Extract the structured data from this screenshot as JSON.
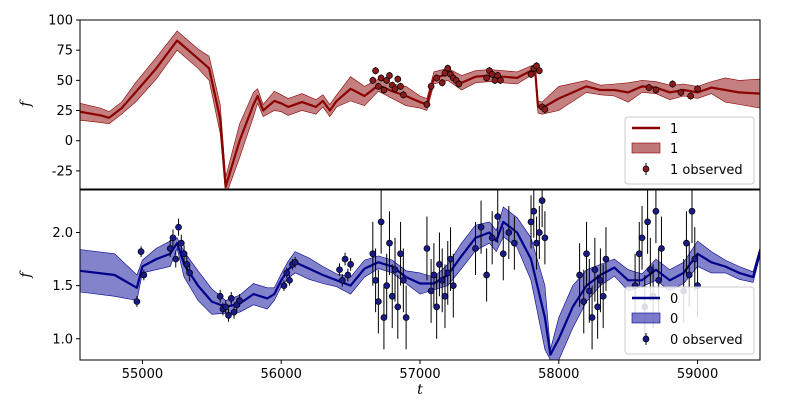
{
  "chart_data": [
    {
      "type": "line",
      "panel": "top",
      "ylabel": "f",
      "ylim": [
        -40,
        100
      ],
      "xlim": [
        54550,
        59450
      ],
      "yticks": [
        -25,
        0,
        25,
        50,
        75,
        100
      ],
      "color": "#8b0000",
      "band_color": "#b05555",
      "marker_color": "#8b1a1a",
      "legend": {
        "line": "1",
        "band": "1",
        "points": "1 observed",
        "position": "lower right"
      },
      "model": {
        "x": [
          54550,
          54700,
          54760,
          54850,
          54950,
          55100,
          55250,
          55400,
          55480,
          55560,
          55600,
          55700,
          55800,
          55830,
          55870,
          55950,
          56000,
          56050,
          56150,
          56250,
          56300,
          56350,
          56400,
          56500,
          56600,
          56700,
          56800,
          56900,
          57000,
          57050,
          57100,
          57200,
          57300,
          57400,
          57500,
          57600,
          57700,
          57800,
          57830,
          57850,
          57880,
          58000,
          58200,
          58300,
          58400,
          58500,
          58600,
          58700,
          58800,
          58900,
          59000,
          59100,
          59200,
          59300,
          59450
        ],
        "y": [
          24,
          21,
          19,
          27,
          40,
          60,
          83,
          68,
          60,
          18,
          -38,
          0,
          30,
          37,
          25,
          33,
          31,
          28,
          32,
          28,
          33,
          25,
          33,
          43,
          37,
          46,
          41,
          37,
          32,
          30,
          52,
          55,
          48,
          53,
          54,
          53,
          52,
          58,
          58,
          28,
          27,
          35,
          45,
          42,
          42,
          40,
          45,
          44,
          40,
          42,
          40,
          44,
          42,
          40,
          39
        ],
        "band": [
          7,
          6,
          5,
          5,
          8,
          9,
          8,
          8,
          10,
          12,
          8,
          14,
          10,
          6,
          5,
          8,
          7,
          7,
          7,
          6,
          5,
          5,
          5,
          10,
          8,
          5,
          6,
          8,
          5,
          5,
          5,
          5,
          6,
          5,
          5,
          5,
          5,
          4,
          4,
          5,
          5,
          10,
          5,
          4,
          5,
          8,
          5,
          5,
          6,
          5,
          5,
          5,
          10,
          10,
          12
        ]
      },
      "observed": {
        "x": [
          56660,
          56680,
          56700,
          56720,
          56740,
          56760,
          56780,
          56800,
          56820,
          56840,
          56860,
          56880,
          57050,
          57080,
          57120,
          57160,
          57180,
          57200,
          57220,
          57240,
          57260,
          57280,
          57480,
          57500,
          57520,
          57540,
          57560,
          57580,
          57800,
          57820,
          57840,
          57860,
          57880,
          57900,
          58650,
          58700,
          58820,
          58880,
          58950,
          59000
        ],
        "y": [
          50,
          58,
          45,
          52,
          42,
          50,
          54,
          46,
          43,
          51,
          45,
          38,
          30,
          45,
          52,
          48,
          56,
          60,
          55,
          52,
          50,
          47,
          52,
          58,
          55,
          50,
          54,
          50,
          55,
          60,
          62,
          58,
          28,
          26,
          44,
          42,
          47,
          40,
          37,
          43
        ],
        "err": [
          3,
          3,
          3,
          3,
          3,
          3,
          3,
          3,
          3,
          3,
          3,
          3,
          3,
          3,
          3,
          3,
          3,
          3,
          3,
          3,
          3,
          3,
          3,
          3,
          3,
          3,
          3,
          3,
          3,
          3,
          3,
          3,
          3,
          3,
          3,
          3,
          3,
          3,
          3,
          3
        ]
      }
    },
    {
      "type": "line",
      "panel": "bottom",
      "xlabel": "t",
      "ylabel": "f",
      "ylim": [
        0.8,
        2.4
      ],
      "xlim": [
        54550,
        59450
      ],
      "yticks": [
        1.0,
        1.5,
        2.0
      ],
      "xticks": [
        55000,
        56000,
        57000,
        58000,
        59000
      ],
      "color": "#00008b",
      "band_color": "#5a5abb",
      "marker_color": "#1a1a8b",
      "legend": {
        "line": "0",
        "band": "0",
        "points": "0 observed",
        "position": "lower right"
      },
      "model": {
        "x": [
          54550,
          54800,
          54960,
          55000,
          55100,
          55200,
          55250,
          55300,
          55400,
          55500,
          55600,
          55700,
          55800,
          55900,
          55950,
          56000,
          56050,
          56100,
          56200,
          56300,
          56400,
          56500,
          56600,
          56700,
          56800,
          56900,
          57000,
          57100,
          57200,
          57300,
          57400,
          57500,
          57550,
          57600,
          57700,
          57800,
          57900,
          57940,
          58000,
          58100,
          58200,
          58300,
          58400,
          58500,
          58600,
          58700,
          58800,
          58900,
          59000,
          59100,
          59200,
          59300,
          59400,
          59450
        ],
        "y": [
          1.64,
          1.6,
          1.48,
          1.68,
          1.75,
          1.8,
          1.9,
          1.7,
          1.5,
          1.35,
          1.3,
          1.33,
          1.42,
          1.38,
          1.42,
          1.55,
          1.65,
          1.72,
          1.66,
          1.6,
          1.55,
          1.5,
          1.66,
          1.72,
          1.68,
          1.58,
          1.52,
          1.52,
          1.6,
          1.78,
          1.95,
          2.0,
          1.92,
          2.1,
          2.0,
          1.75,
          1.2,
          0.85,
          1.0,
          1.3,
          1.5,
          1.6,
          1.67,
          1.55,
          1.55,
          1.65,
          1.55,
          1.62,
          1.8,
          1.72,
          1.68,
          1.62,
          1.58,
          1.82
        ],
        "band": [
          0.2,
          0.2,
          0.12,
          0.06,
          0.1,
          0.12,
          0.05,
          0.12,
          0.14,
          0.12,
          0.06,
          0.08,
          0.1,
          0.1,
          0.06,
          0.06,
          0.08,
          0.1,
          0.1,
          0.08,
          0.06,
          0.08,
          0.08,
          0.06,
          0.06,
          0.06,
          0.1,
          0.06,
          0.1,
          0.12,
          0.12,
          0.1,
          0.1,
          0.14,
          0.14,
          0.2,
          0.3,
          0.05,
          0.2,
          0.2,
          0.15,
          0.1,
          0.08,
          0.1,
          0.06,
          0.1,
          0.1,
          0.1,
          0.12,
          0.1,
          0.06,
          0.06,
          0.05,
          0.04
        ]
      },
      "observed": {
        "x": [
          54960,
          54990,
          55010,
          55200,
          55220,
          55240,
          55260,
          55280,
          55300,
          55320,
          55340,
          55560,
          55580,
          55600,
          55620,
          55640,
          55660,
          55680,
          55700,
          56020,
          56040,
          56060,
          56080,
          56100,
          56420,
          56440,
          56460,
          56480,
          56500,
          56660,
          56680,
          56700,
          56720,
          56740,
          56760,
          56780,
          56800,
          56820,
          56840,
          56860,
          56880,
          56900,
          57050,
          57080,
          57100,
          57120,
          57140,
          57160,
          57180,
          57200,
          57220,
          57240,
          57400,
          57440,
          57480,
          57520,
          57560,
          57600,
          57640,
          57680,
          57800,
          57820,
          57840,
          57860,
          57880,
          57900,
          58150,
          58180,
          58200,
          58220,
          58240,
          58260,
          58280,
          58300,
          58320,
          58340,
          58550,
          58580,
          58600,
          58620,
          58640,
          58660,
          58680,
          58700,
          58720,
          58740,
          58900,
          58920,
          58940,
          58960,
          58980,
          59000
        ],
        "y": [
          1.35,
          1.82,
          1.6,
          1.85,
          1.95,
          1.75,
          2.05,
          1.9,
          1.8,
          1.7,
          1.62,
          1.4,
          1.28,
          1.3,
          1.22,
          1.38,
          1.25,
          1.32,
          1.36,
          1.5,
          1.62,
          1.55,
          1.7,
          1.72,
          1.65,
          1.55,
          1.75,
          1.6,
          1.7,
          1.8,
          1.55,
          1.35,
          2.1,
          1.2,
          1.5,
          1.9,
          1.4,
          1.65,
          1.3,
          1.8,
          1.55,
          1.2,
          1.85,
          1.45,
          1.6,
          1.3,
          1.7,
          1.55,
          1.4,
          1.62,
          1.75,
          1.5,
          1.85,
          2.05,
          1.6,
          1.95,
          2.15,
          1.8,
          2.0,
          1.9,
          2.1,
          2.2,
          1.9,
          2.0,
          2.3,
          1.95,
          1.6,
          1.35,
          1.8,
          1.45,
          1.2,
          1.65,
          1.3,
          1.55,
          1.4,
          1.75,
          1.5,
          1.8,
          1.95,
          1.3,
          2.1,
          1.65,
          1.4,
          2.2,
          1.55,
          1.85,
          1.45,
          1.9,
          1.6,
          2.2,
          1.75,
          1.5
        ],
        "err": [
          0.05,
          0.05,
          0.05,
          0.08,
          0.08,
          0.08,
          0.08,
          0.08,
          0.08,
          0.08,
          0.08,
          0.06,
          0.06,
          0.06,
          0.06,
          0.06,
          0.06,
          0.06,
          0.06,
          0.05,
          0.05,
          0.05,
          0.05,
          0.05,
          0.06,
          0.06,
          0.06,
          0.06,
          0.06,
          0.3,
          0.3,
          0.3,
          0.3,
          0.3,
          0.3,
          0.3,
          0.3,
          0.3,
          0.3,
          0.3,
          0.3,
          0.3,
          0.3,
          0.3,
          0.3,
          0.3,
          0.3,
          0.3,
          0.3,
          0.3,
          0.3,
          0.3,
          0.25,
          0.25,
          0.25,
          0.25,
          0.25,
          0.25,
          0.25,
          0.25,
          0.25,
          0.25,
          0.25,
          0.25,
          0.25,
          0.25,
          0.3,
          0.3,
          0.3,
          0.3,
          0.3,
          0.3,
          0.3,
          0.3,
          0.3,
          0.3,
          0.3,
          0.3,
          0.3,
          0.3,
          0.3,
          0.3,
          0.3,
          0.3,
          0.3,
          0.3,
          0.3,
          0.3,
          0.3,
          0.3,
          0.3,
          0.3
        ]
      }
    }
  ]
}
